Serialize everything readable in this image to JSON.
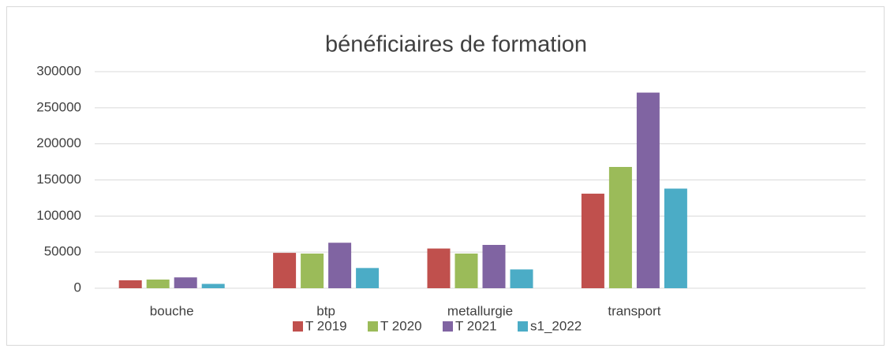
{
  "chart_data": {
    "type": "bar",
    "title": "bénéficiaires de formation",
    "categories": [
      "bouche",
      "btp",
      "metallurgie",
      "transport",
      null
    ],
    "series": [
      {
        "name": "T 2019",
        "color": "#c0504d",
        "values": [
          11000,
          49000,
          55000,
          131000,
          null
        ]
      },
      {
        "name": "T 2020",
        "color": "#9bbb59",
        "values": [
          12000,
          48000,
          48000,
          168000,
          null
        ]
      },
      {
        "name": "T 2021",
        "color": "#8064a2",
        "values": [
          15000,
          63000,
          60000,
          271000,
          null
        ]
      },
      {
        "name": "s1_2022",
        "color": "#4bacc6",
        "values": [
          6000,
          28000,
          26000,
          138000,
          null
        ]
      }
    ],
    "ylim": [
      0,
      300000
    ],
    "yticks": [
      0,
      50000,
      100000,
      150000,
      200000,
      250000,
      300000
    ],
    "grid": true,
    "legend": "bottom"
  }
}
